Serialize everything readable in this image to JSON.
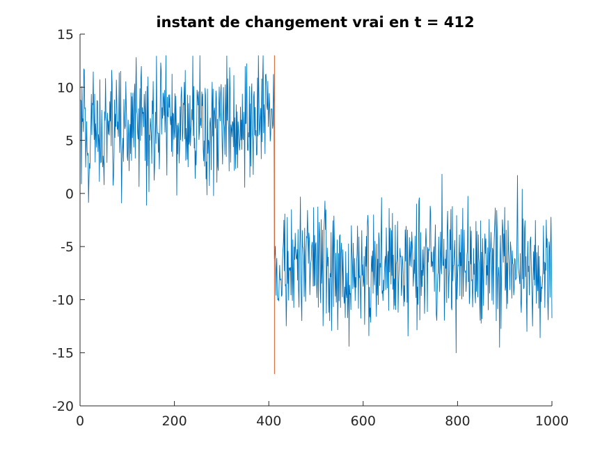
{
  "chart_data": {
    "type": "line",
    "title": "instant de changement vrai en t = 412",
    "xlabel": "",
    "ylabel": "",
    "xlim": [
      0,
      1000
    ],
    "ylim": [
      -20,
      15
    ],
    "xticks": [
      0,
      200,
      400,
      600,
      800,
      1000
    ],
    "yticks": [
      -20,
      -15,
      -10,
      -5,
      0,
      5,
      10,
      15
    ],
    "grid": false,
    "legend": "none",
    "change_point": {
      "x": 412,
      "y_range": [
        -17,
        13
      ],
      "color": "#d95319"
    },
    "series": [
      {
        "color": "#0072bd",
        "segments": [
          {
            "x_start": 1,
            "x_end": 411,
            "mean": 6.5,
            "std": 3.0,
            "min": -5.2,
            "max": 13.0
          },
          {
            "x_start": 412,
            "x_end": 1000,
            "mean": -7.0,
            "std": 3.0,
            "min": -17.0,
            "max": 3.4
          }
        ]
      }
    ]
  }
}
